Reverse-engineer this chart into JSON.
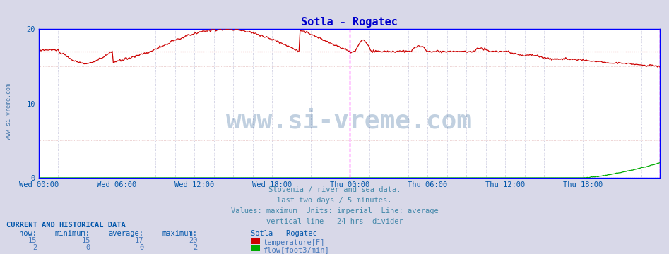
{
  "title": "Sotla - Rogatec",
  "title_color": "#0000cc",
  "bg_color": "#d8d8e8",
  "plot_bg_color": "#ffffff",
  "grid_color": "#ddaaaa",
  "grid_color2": "#aaaadd",
  "xlim": [
    0,
    575
  ],
  "ylim": [
    0,
    20
  ],
  "yticks": [
    0,
    10,
    20
  ],
  "xtick_labels": [
    "Wed 00:00",
    "Wed 06:00",
    "Wed 12:00",
    "Wed 18:00",
    "Thu 00:00",
    "Thu 06:00",
    "Thu 12:00",
    "Thu 18:00"
  ],
  "xtick_positions": [
    0,
    72,
    144,
    216,
    288,
    360,
    432,
    504
  ],
  "temp_color": "#cc0000",
  "flow_color": "#00aa00",
  "vline_color": "#ff00ff",
  "vline_x": 288,
  "vline2_x": 575,
  "border_color": "#0000ff",
  "watermark": "www.si-vreme.com",
  "watermark_color": "#336699",
  "subtitle_lines": [
    "Slovenia / river and sea data.",
    "last two days / 5 minutes.",
    "Values: maximum  Units: imperial  Line: average",
    "vertical line - 24 hrs  divider"
  ],
  "subtitle_color": "#4488aa",
  "table_header_color": "#0055aa",
  "table_data_color": "#4477bb",
  "temp_now": 15,
  "temp_min": 15,
  "temp_avg": 17,
  "temp_max": 20,
  "flow_now": 2,
  "flow_min": 0,
  "flow_avg": 0,
  "flow_max": 2,
  "left_label_color": "#4477aa",
  "left_label": "www.si-vreme.com"
}
